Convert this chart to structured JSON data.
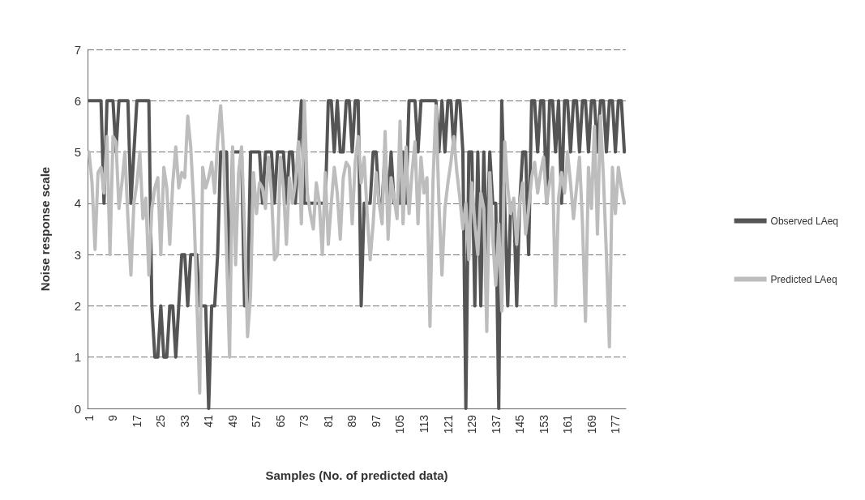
{
  "chart_data": {
    "type": "line",
    "xlabel": "Samples (No. of predicted data)",
    "ylabel": "Noise response scale",
    "categories": [
      "1",
      null,
      null,
      null,
      null,
      null,
      null,
      null,
      "9",
      null,
      null,
      null,
      null,
      null,
      null,
      null,
      "17",
      null,
      null,
      null,
      null,
      null,
      null,
      null,
      "25",
      null,
      null,
      null,
      null,
      null,
      null,
      null,
      "33",
      null,
      null,
      null,
      null,
      null,
      null,
      null,
      "41",
      null,
      null,
      null,
      null,
      null,
      null,
      null,
      "49",
      null,
      null,
      null,
      null,
      null,
      null,
      null,
      "57",
      null,
      null,
      null,
      null,
      null,
      null,
      null,
      "65",
      null,
      null,
      null,
      null,
      null,
      null,
      null,
      "73",
      null,
      null,
      null,
      null,
      null,
      null,
      null,
      "81",
      null,
      null,
      null,
      null,
      null,
      null,
      null,
      "89",
      null,
      null,
      null,
      null,
      null,
      null,
      null,
      "97",
      null,
      null,
      null,
      null,
      null,
      null,
      null,
      "105",
      null,
      null,
      null,
      null,
      null,
      null,
      null,
      "113",
      null,
      null,
      null,
      null,
      null,
      null,
      null,
      "121",
      null,
      null,
      null,
      null,
      null,
      null,
      null,
      "129",
      null,
      null,
      null,
      null,
      null,
      null,
      null,
      "137",
      null,
      null,
      null,
      null,
      null,
      null,
      null,
      "145",
      null,
      null,
      null,
      null,
      null,
      null,
      null,
      "153",
      null,
      null,
      null,
      null,
      null,
      null,
      null,
      "161",
      null,
      null,
      null,
      null,
      null,
      null,
      null,
      "169",
      null,
      null,
      null,
      null,
      null,
      null,
      null,
      "177",
      null,
      null,
      null
    ],
    "series": [
      {
        "name": "Observed LAeq",
        "color": "#555555",
        "values": [
          6,
          6,
          6,
          6,
          6,
          4,
          6,
          6,
          6,
          5,
          6,
          6,
          6,
          6,
          4,
          5,
          6,
          6,
          6,
          6,
          6,
          2,
          1,
          1,
          2,
          1,
          1,
          2,
          2,
          1,
          2,
          3,
          3,
          2,
          3,
          3,
          3,
          2,
          2,
          2,
          0,
          2,
          2,
          3,
          5,
          5,
          5,
          2,
          5,
          5,
          5,
          5,
          2,
          2,
          5,
          5,
          5,
          5,
          4,
          5,
          5,
          5,
          4,
          5,
          5,
          5,
          4,
          5,
          5,
          4,
          5,
          6,
          4,
          4,
          4,
          4,
          4,
          4,
          4,
          4,
          6,
          6,
          5,
          6,
          5,
          5,
          6,
          6,
          5,
          6,
          6,
          2,
          4,
          4,
          4,
          5,
          5,
          4,
          4,
          5,
          4,
          5,
          4,
          4,
          4,
          5,
          4,
          6,
          6,
          6,
          5,
          6,
          6,
          6,
          6,
          6,
          6,
          5,
          6,
          5,
          6,
          6,
          5,
          6,
          6,
          5,
          0,
          5,
          5,
          2,
          5,
          2,
          5,
          3,
          5,
          4,
          4,
          0,
          6,
          4,
          2,
          4,
          4,
          2,
          4,
          5,
          5,
          3,
          6,
          6,
          5,
          6,
          6,
          4,
          6,
          6,
          5,
          6,
          4,
          6,
          6,
          5,
          6,
          6,
          5,
          6,
          6,
          5,
          6,
          6,
          5,
          6,
          6,
          5,
          6,
          6,
          5,
          6,
          6,
          5
        ]
      },
      {
        "name": "Predicted LAeq",
        "color": "#bdbdbd",
        "values": [
          5.0,
          4.4,
          3.1,
          4.6,
          4.7,
          4.2,
          5.3,
          3.0,
          5.3,
          5.2,
          3.9,
          4.4,
          5.0,
          3.7,
          2.6,
          4.0,
          4.4,
          5.0,
          3.7,
          4.1,
          2.6,
          3.9,
          4.3,
          4.5,
          3.0,
          4.7,
          4.3,
          3.2,
          4.4,
          5.1,
          4.3,
          4.6,
          4.5,
          5.7,
          5.1,
          4.0,
          2.2,
          0.3,
          4.7,
          4.3,
          4.5,
          4.8,
          4.2,
          5.2,
          5.9,
          5.0,
          3.0,
          1.0,
          5.1,
          2.8,
          4.6,
          5.1,
          3.5,
          1.4,
          2.2,
          4.6,
          3.8,
          4.4,
          4.3,
          3.9,
          4.9,
          4.2,
          2.9,
          3.0,
          4.9,
          4.3,
          3.2,
          4.5,
          4.0,
          4.4,
          5.2,
          3.6,
          6.0,
          4.2,
          3.8,
          3.5,
          4.4,
          4.0,
          3.0,
          4.6,
          3.2,
          4.0,
          4.7,
          4.2,
          3.3,
          4.5,
          4.8,
          4.7,
          3.6,
          4.8,
          5.3,
          4.4,
          4.9,
          3.8,
          2.9,
          3.6,
          4.6,
          4.0,
          3.6,
          5.4,
          3.3,
          4.5,
          4.1,
          3.7,
          5.6,
          3.6,
          5.1,
          3.8,
          4.6,
          5.2,
          3.6,
          4.9,
          4.2,
          4.5,
          1.6,
          4.4,
          5.9,
          4.0,
          2.6,
          3.9,
          4.4,
          4.8,
          5.3,
          4.6,
          4.1,
          3.5,
          4.0,
          2.9,
          4.4,
          3.6,
          3.0,
          4.2,
          3.9,
          1.5,
          4.6,
          3.3,
          2.4,
          3.6,
          1.9,
          5.2,
          4.3,
          3.8,
          4.1,
          3.2,
          4.0,
          4.4,
          3.4,
          3.9,
          4.5,
          4.8,
          4.2,
          4.6,
          4.9,
          4.0,
          4.4,
          4.7,
          2.0,
          4.1,
          4.6,
          4.2,
          5.0,
          4.4,
          3.7,
          4.3,
          4.9,
          3.6,
          1.7,
          4.7,
          3.9,
          5.5,
          3.4,
          5.7,
          4.5,
          3.0,
          1.2,
          4.7,
          3.8,
          4.7,
          4.3,
          4.0
        ]
      }
    ],
    "ylim": [
      0,
      7
    ],
    "yticks": [
      0,
      1,
      2,
      3,
      4,
      5,
      6,
      7
    ],
    "grid": "y",
    "legend": "right",
    "marker": "none",
    "line_style": "solid"
  }
}
